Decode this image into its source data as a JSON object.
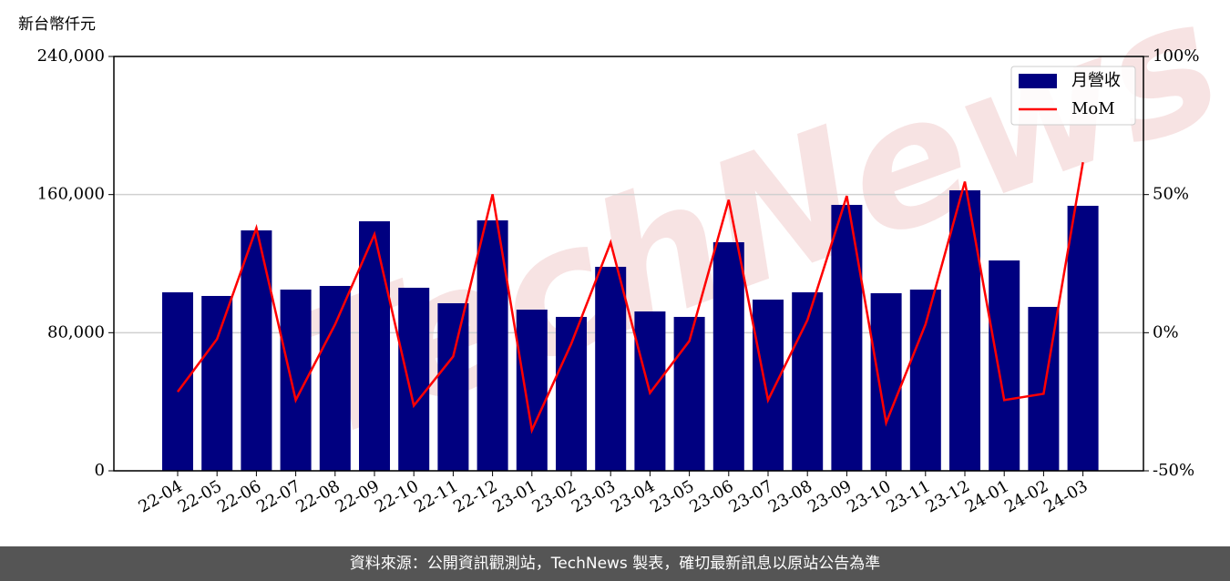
{
  "chart_data": {
    "type": "bar-line",
    "unit_label": "新台幣仟元",
    "watermark": "TechNews",
    "footer": "資料來源：公開資訊觀測站，TechNews 製表，確切最新訊息以原站公告為準",
    "categories": [
      "22-04",
      "22-05",
      "22-06",
      "22-07",
      "22-08",
      "22-09",
      "22-10",
      "22-11",
      "22-12",
      "23-01",
      "23-02",
      "23-03",
      "23-04",
      "23-05",
      "23-06",
      "23-07",
      "23-08",
      "23-09",
      "23-10",
      "23-11",
      "23-12",
      "24-01",
      "24-02",
      "24-03"
    ],
    "series": [
      {
        "name": "月營收",
        "type": "bar",
        "color": "#000080",
        "values": [
          103390,
          101280,
          139260,
          104970,
          107080,
          144535,
          106030,
          97060,
          145060,
          93370,
          89150,
          118160,
          92310,
          89150,
          132400,
          99170,
          103390,
          154030,
          102860,
          104970,
          162470,
          121850,
          94950,
          153500
        ]
      },
      {
        "name": "MoM",
        "type": "line",
        "axis": "y2",
        "color": "#ff0000",
        "values": [
          -21.4,
          -2.3,
          37.9,
          -24.4,
          3.0,
          35.6,
          -26.4,
          -8.6,
          50.1,
          -35.3,
          -4.0,
          32.6,
          -21.8,
          -3.0,
          48.1,
          -24.4,
          4.6,
          49.5,
          -32.6,
          3.0,
          54.7,
          -24.4,
          -22.1,
          61.7
        ]
      }
    ],
    "ylim": [
      0,
      240000
    ],
    "yticks": [
      0,
      {
        "value": 80000,
        "label": "80,000"
      },
      {
        "value": 160000,
        "label": "160,000"
      },
      {
        "value": 240000,
        "label": "240,000"
      }
    ],
    "y2lim": [
      -50,
      100
    ],
    "y2ticks": [
      {
        "value": -50,
        "label": "-50%"
      },
      {
        "value": 0,
        "label": "0%"
      },
      {
        "value": 50,
        "label": "50%"
      },
      {
        "value": 100,
        "label": "100%"
      }
    ],
    "grid": true,
    "legend": "upper right"
  }
}
